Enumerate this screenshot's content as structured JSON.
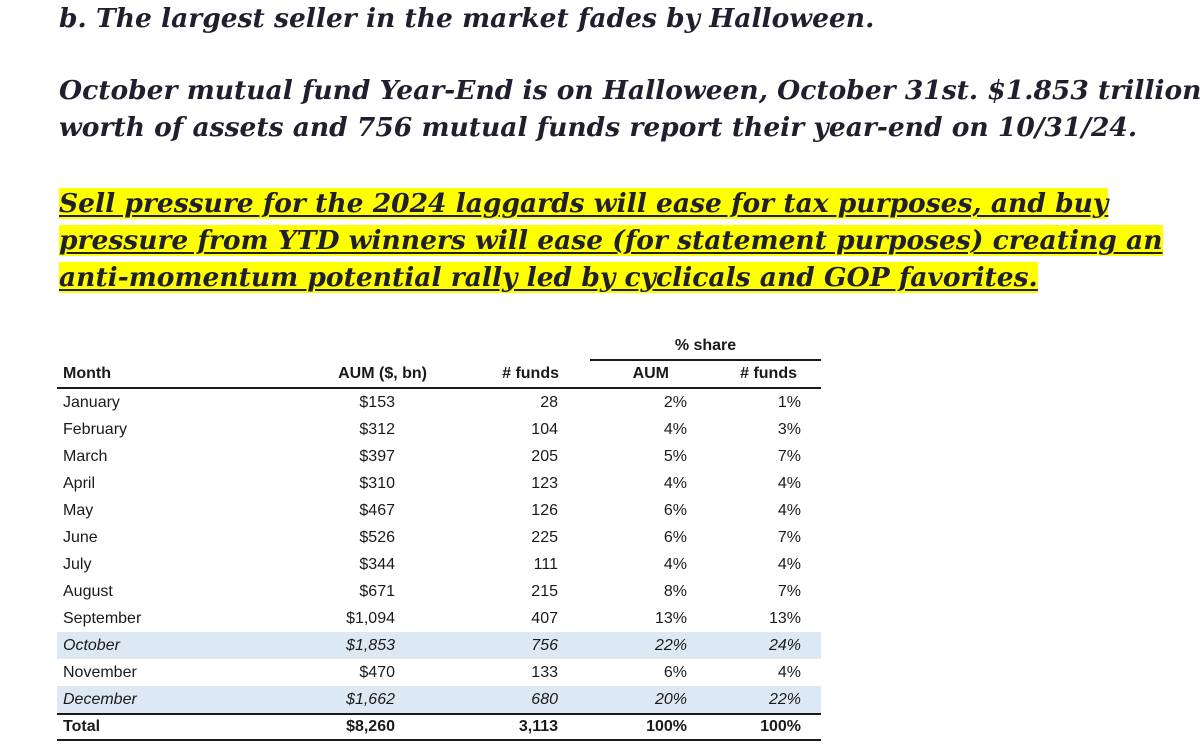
{
  "heading": "b. The largest seller in the market fades by Halloween.",
  "paragraph1": {
    "lines": [
      "October mutual fund Year-End is on Halloween, October 31st. $1.853 trillion",
      "worth of assets and 756 mutual funds report their year-end on 10/31/24."
    ]
  },
  "paragraph2": {
    "highlight_color": "#ffff00",
    "lines": [
      "Sell pressure for the 2024 laggards will ease for tax purposes, and buy",
      "pressure from YTD winners will ease (for statement purposes) creating an",
      "anti-momentum potential rally led by cyclicals and GOP favorites."
    ]
  },
  "table": {
    "group_header": "% share",
    "headers": {
      "month": "Month",
      "aum": "AUM ($, bn)",
      "funds": "# funds",
      "share_aum": "AUM",
      "share_funds": "# funds"
    },
    "row_highlight_color": "#dce9f5",
    "rows": [
      {
        "month": "January",
        "aum": "$153",
        "funds": "28",
        "share_aum": "2%",
        "share_funds": "1%",
        "highlight": false
      },
      {
        "month": "February",
        "aum": "$312",
        "funds": "104",
        "share_aum": "4%",
        "share_funds": "3%",
        "highlight": false
      },
      {
        "month": "March",
        "aum": "$397",
        "funds": "205",
        "share_aum": "5%",
        "share_funds": "7%",
        "highlight": false
      },
      {
        "month": "April",
        "aum": "$310",
        "funds": "123",
        "share_aum": "4%",
        "share_funds": "4%",
        "highlight": false
      },
      {
        "month": "May",
        "aum": "$467",
        "funds": "126",
        "share_aum": "6%",
        "share_funds": "4%",
        "highlight": false
      },
      {
        "month": "June",
        "aum": "$526",
        "funds": "225",
        "share_aum": "6%",
        "share_funds": "7%",
        "highlight": false
      },
      {
        "month": "July",
        "aum": "$344",
        "funds": "111",
        "share_aum": "4%",
        "share_funds": "4%",
        "highlight": false
      },
      {
        "month": "August",
        "aum": "$671",
        "funds": "215",
        "share_aum": "8%",
        "share_funds": "7%",
        "highlight": false
      },
      {
        "month": "September",
        "aum": "$1,094",
        "funds": "407",
        "share_aum": "13%",
        "share_funds": "13%",
        "highlight": false
      },
      {
        "month": "October",
        "aum": "$1,853",
        "funds": "756",
        "share_aum": "22%",
        "share_funds": "24%",
        "highlight": true
      },
      {
        "month": "November",
        "aum": "$470",
        "funds": "133",
        "share_aum": "6%",
        "share_funds": "4%",
        "highlight": false
      },
      {
        "month": "December",
        "aum": "$1,662",
        "funds": "680",
        "share_aum": "20%",
        "share_funds": "22%",
        "highlight": true
      }
    ],
    "total": {
      "month": "Total",
      "aum": "$8,260",
      "funds": "3,113",
      "share_aum": "100%",
      "share_funds": "100%"
    }
  }
}
